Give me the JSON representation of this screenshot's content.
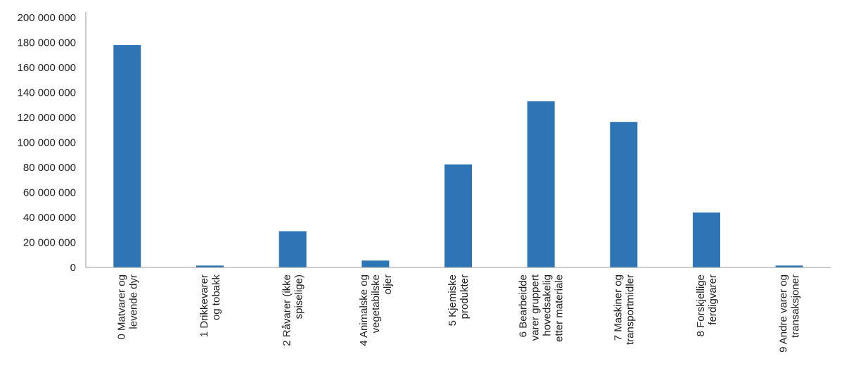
{
  "chart_data": {
    "type": "bar",
    "title": "",
    "xlabel": "",
    "ylabel": "",
    "ylim": [
      0,
      200000000
    ],
    "yticks": [
      {
        "value": 0,
        "label": "0"
      },
      {
        "value": 20000000,
        "label": "20 000 000"
      },
      {
        "value": 40000000,
        "label": "40 000 000"
      },
      {
        "value": 60000000,
        "label": "60 000 000"
      },
      {
        "value": 80000000,
        "label": "80 000 000"
      },
      {
        "value": 100000000,
        "label": "100 000 000"
      },
      {
        "value": 120000000,
        "label": "120 000 000"
      },
      {
        "value": 140000000,
        "label": "140 000 000"
      },
      {
        "value": 160000000,
        "label": "160 000 000"
      },
      {
        "value": 180000000,
        "label": "180 000 000"
      },
      {
        "value": 200000000,
        "label": "200 000 000"
      }
    ],
    "categories": [
      [
        "0 Matvarer og",
        "levende dyr"
      ],
      [
        "1 Drikkevarer",
        "og tobakk"
      ],
      [
        "2 Råvarer (ikke",
        "spiselige)"
      ],
      [
        "4 Animalske og",
        "vegetabilske",
        "oljer"
      ],
      [
        "5 Kjemiske",
        "produkter"
      ],
      [
        "6 Bearbeidde",
        "varer gruppert",
        "hovedsakelig",
        "etter materiale"
      ],
      [
        "7 Maskiner og",
        "transportmidler"
      ],
      [
        "8 Forskjellige",
        "ferdigvarer"
      ],
      [
        "9 Andre varer og",
        "transaksjoner"
      ]
    ],
    "values": [
      178000000,
      1500000,
      29000000,
      5500000,
      82500000,
      133000000,
      116500000,
      44000000,
      1500000
    ],
    "bar_color": "#2e75b6",
    "grid": false,
    "legend": "none"
  }
}
